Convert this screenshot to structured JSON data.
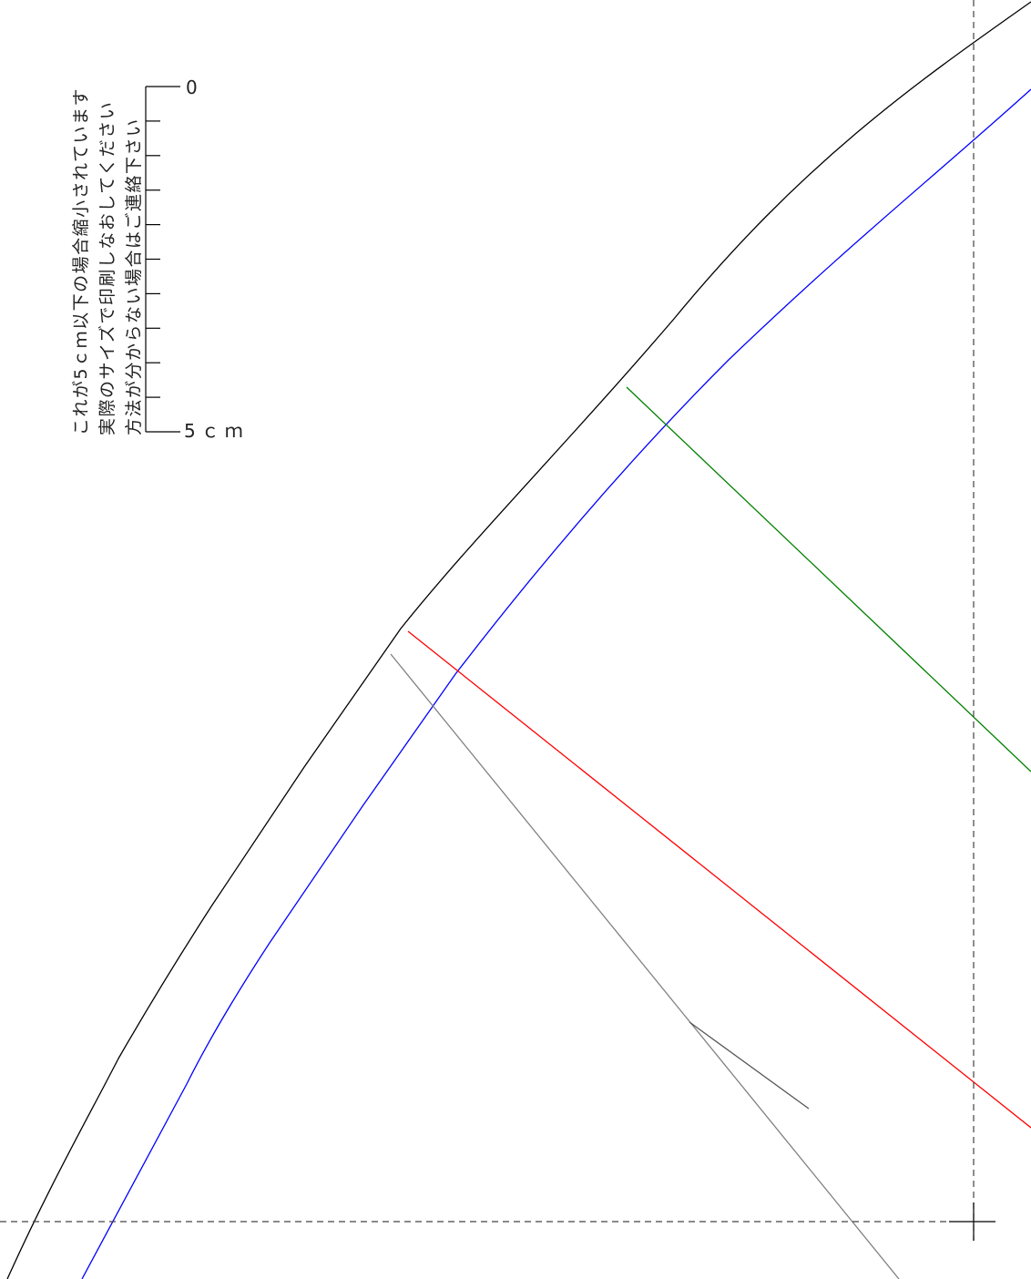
{
  "note": {
    "line1": "これが5ｃｍ以下の場合縮小されています",
    "line2": "実際のサイズで印刷しなおしてください",
    "line3": "方法が分からない場合はご連絡下さい"
  },
  "scale": {
    "start_label": "0",
    "end_label": "5ｃｍ",
    "minor_ticks": 9
  },
  "colors": {
    "outline": "#000000",
    "seam": "#0000ff",
    "green_guide": "#008000",
    "red_guide": "#ff0000",
    "gray_guide": "#808080",
    "dashed_guide": "#444444"
  }
}
